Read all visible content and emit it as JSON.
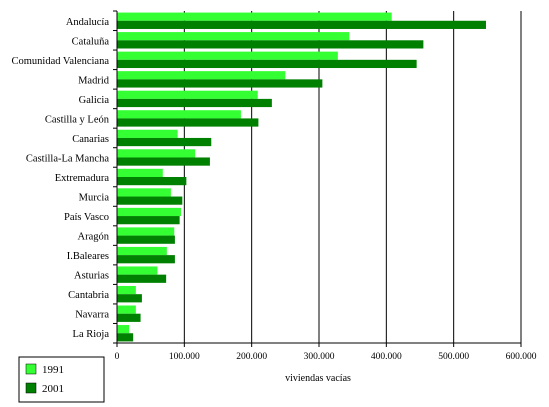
{
  "chart_data": {
    "type": "bar",
    "orientation": "horizontal",
    "categories": [
      "Andalucía",
      "Cataluña",
      "Comunidad Valenciana",
      "Madrid",
      "Galicia",
      "Castilla y León",
      "Canarias",
      "Castilla-La Mancha",
      "Extremadura",
      "Murcia",
      "País Vasco",
      "Aragón",
      "I.Baleares",
      "Asturias",
      "Cantabria",
      "Navarra",
      "La Rioja"
    ],
    "series": [
      {
        "name": "1991",
        "color": "#33ff33",
        "values": [
          408000,
          345000,
          328000,
          250000,
          209000,
          184000,
          90000,
          116000,
          68000,
          80000,
          95000,
          85000,
          74000,
          60000,
          28000,
          28000,
          18000
        ]
      },
      {
        "name": "2001",
        "color": "#008000",
        "values": [
          548000,
          455000,
          445000,
          305000,
          230000,
          210000,
          140000,
          138000,
          103000,
          97000,
          93000,
          86000,
          86000,
          73000,
          37000,
          35000,
          24000
        ]
      }
    ],
    "xlabel": "viviendas vacías",
    "xlim": [
      0,
      600000
    ],
    "xticks": [
      0,
      100000,
      200000,
      300000,
      400000,
      500000,
      600000
    ],
    "xtick_labels": [
      "0",
      "100.000",
      "200.000",
      "300.000",
      "400.000",
      "500.000",
      "600.000"
    ],
    "grid": true,
    "legend": "bottom-left"
  }
}
